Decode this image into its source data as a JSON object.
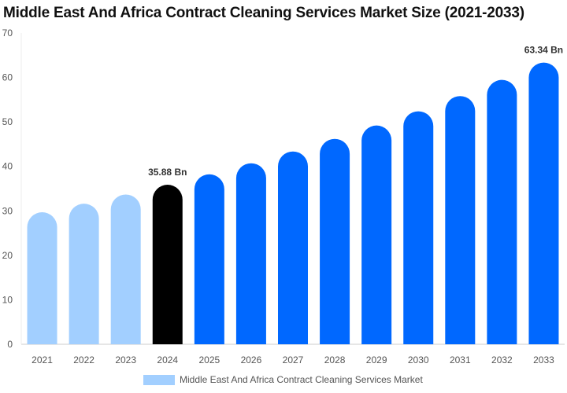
{
  "chart_data": {
    "type": "bar",
    "title": "Middle East And Africa Contract Cleaning Services Market Size (2021-2033)",
    "categories": [
      "2021",
      "2022",
      "2023",
      "2024",
      "2025",
      "2026",
      "2027",
      "2028",
      "2029",
      "2030",
      "2031",
      "2032",
      "2033"
    ],
    "series": [
      {
        "name": "Middle East And Africa Contract Cleaning Services Market",
        "values": [
          29.69,
          31.62,
          33.68,
          35.88,
          38.22,
          40.71,
          43.36,
          46.19,
          49.2,
          52.4,
          55.82,
          59.46,
          63.34
        ]
      }
    ],
    "data_labels": {
      "3": "35.88 Bn",
      "12": "63.34 Bn"
    },
    "ylim": [
      0,
      70
    ],
    "yticks": [
      "0",
      "10",
      "20",
      "30",
      "40",
      "50",
      "60",
      "70"
    ],
    "xlabel": "",
    "ylabel": "",
    "grid": false,
    "legend": "bottom",
    "colors": {
      "historical": "#a2cfff",
      "base_year": "#000000",
      "forecast": "#0068ff",
      "legend": "#a2cfff"
    }
  }
}
